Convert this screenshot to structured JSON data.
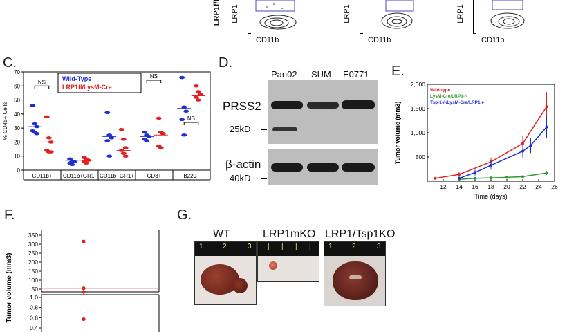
{
  "flow": {
    "row_label": "LRP1f/f",
    "plots": [
      {
        "ylabel": "LRP1",
        "xlabel": "CD11b"
      },
      {
        "ylabel": "LRP1",
        "xlabel": "CD11b"
      },
      {
        "ylabel": "LRP1",
        "xlabel": "CD11b"
      }
    ]
  },
  "panels": {
    "C": "C.",
    "D": "D.",
    "E": "E.",
    "F": "F.",
    "G": "G."
  },
  "colors": {
    "red": "#e02020",
    "blue": "#1f2fd0",
    "green": "#2e9a2e"
  },
  "chart_data": [
    {
      "type": "scatter",
      "panel": "C",
      "ylabel": "% CD45+ Cells",
      "ylim": [
        0,
        70
      ],
      "yticks": [
        0,
        10,
        20,
        30,
        40,
        50,
        60,
        70
      ],
      "categories": [
        "CD11b+",
        "CD11b+GR1-",
        "CD11b+GR1+",
        "CD3+",
        "B220+"
      ],
      "series": [
        {
          "name": "Wild-Type",
          "color": "#1f2fd0",
          "values": [
            [
              46,
              33,
              31,
              28,
              27,
              26
            ],
            [
              8,
              6,
              6,
              5,
              4
            ],
            [
              41,
              25,
              23,
              21,
              10
            ],
            [
              27,
              25,
              24,
              22,
              21
            ],
            [
              66,
              45,
              42,
              36,
              25
            ]
          ],
          "means": [
            31,
            7,
            24,
            24,
            44
          ]
        },
        {
          "name": "LRP1fl/LysM-Cre",
          "color": "#e02020",
          "values": [
            [
              38,
              23,
              20,
              14,
              13,
              13
            ],
            [
              9,
              8,
              7,
              6,
              5
            ],
            [
              29,
              22,
              16,
              14,
              12,
              10
            ],
            [
              37,
              27,
              26,
              17,
              16
            ],
            [
              60,
              56,
              54,
              52,
              50
            ]
          ],
          "means": [
            20,
            7,
            14,
            25,
            53
          ]
        }
      ],
      "annotations": [
        "NS",
        "NS",
        "NS",
        "NS",
        "NS"
      ]
    },
    {
      "type": "line",
      "panel": "E",
      "ylabel": "Tumor volume (mm3)",
      "xlabel": "Time (days)",
      "xlim": [
        10,
        26
      ],
      "ylim": [
        0,
        2000
      ],
      "xticks": [
        12,
        14,
        16,
        18,
        20,
        22,
        24,
        26
      ],
      "yticks": [
        500,
        1000,
        1500,
        2000
      ],
      "ytick_labels": [
        "500",
        "1,000",
        "1,500",
        "2,000"
      ],
      "x": [
        11,
        14,
        16,
        18,
        22,
        23,
        25
      ],
      "series": [
        {
          "name": "Wild-type",
          "color": "#e02020",
          "points": [
            [
              11,
              60
            ],
            [
              14,
              140
            ],
            [
              18,
              400
            ],
            [
              22,
              780
            ],
            [
              25,
              1540
            ]
          ],
          "err": [
            20,
            60,
            90,
            150,
            300
          ]
        },
        {
          "name": "LysM-Cre/LRP1-/-",
          "color": "#2e9a2e",
          "points": [
            [
              14,
              40
            ],
            [
              16,
              60
            ],
            [
              18,
              70
            ],
            [
              20,
              80
            ],
            [
              22,
              95
            ],
            [
              25,
              170
            ]
          ],
          "err": [
            10,
            10,
            15,
            15,
            20,
            40
          ]
        },
        {
          "name": "Tsp-1-/-/LysM-Cre/LRP1-/-",
          "color": "#1f2fd0",
          "points": [
            [
              14,
              60
            ],
            [
              16,
              180
            ],
            [
              18,
              330
            ],
            [
              22,
              620
            ],
            [
              23,
              740
            ],
            [
              25,
              1120
            ]
          ],
          "err": [
            20,
            60,
            90,
            130,
            160,
            220
          ]
        }
      ]
    },
    {
      "type": "scatter",
      "panel": "F",
      "ylabel": "Tumor volume (mm3)",
      "upper_yticks": [
        50,
        100,
        150,
        200,
        250,
        300,
        350
      ],
      "lower_yticks": [
        0.4,
        0.6,
        0.8,
        1.0
      ],
      "points_upper": [
        315,
        55,
        22
      ],
      "points_lower": [
        0.57
      ],
      "mean": 55
    }
  ],
  "blot": {
    "lanes": [
      "Pan02",
      "SUM",
      "E0771"
    ],
    "target": "PRSS2",
    "marker_target": "25kD",
    "loading": "β-actin",
    "marker_loading": "40kD"
  },
  "photos": {
    "labels": [
      "WT",
      "LRP1mKO",
      "LRP1/Tsp1KO"
    ],
    "ruler_marks": [
      "1",
      "2",
      "3"
    ]
  }
}
